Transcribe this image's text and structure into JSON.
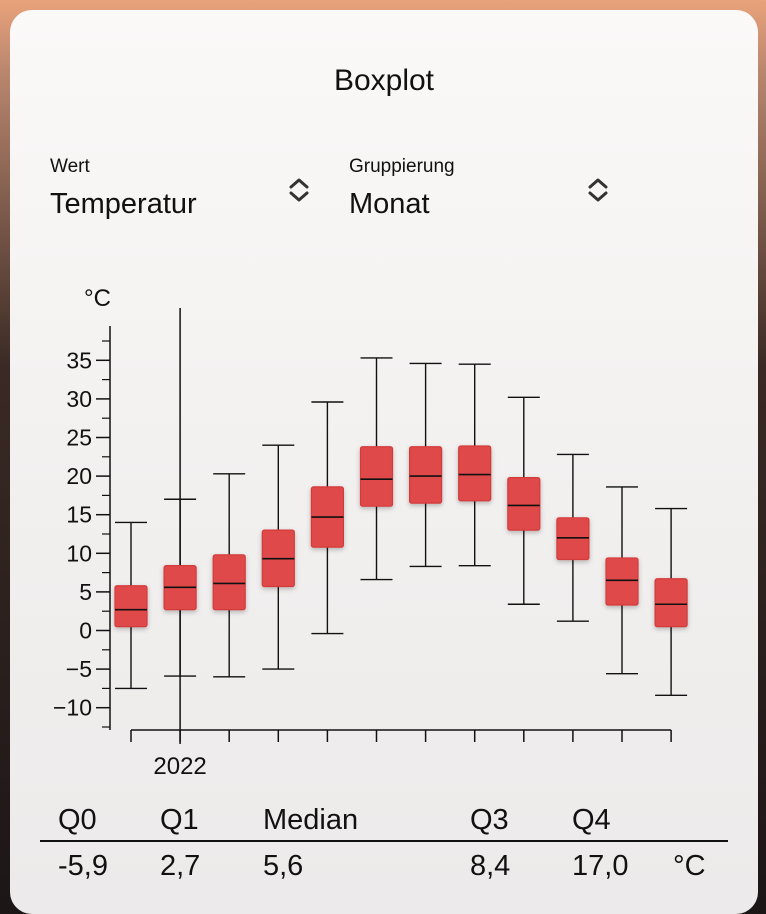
{
  "title": "Boxplot",
  "pickers": [
    {
      "label": "Wert",
      "value": "Temperatur",
      "icon": "chevron-up-down-icon"
    },
    {
      "label": "Gruppierung",
      "value": "Monat",
      "icon": "chevron-up-down-icon"
    }
  ],
  "chart_data": {
    "type": "boxplot",
    "ylabel": "°C",
    "ylim": [
      -13,
      40
    ],
    "yticks": [
      -10,
      -5,
      0,
      5,
      10,
      15,
      20,
      25,
      30,
      35
    ],
    "ytick_labels": [
      "−10",
      "−5",
      "0",
      "5",
      "10",
      "15",
      "20",
      "25",
      "30",
      "35"
    ],
    "x_label": "2022",
    "grid": false,
    "highlight_index": 1,
    "boxes": [
      {
        "min": -7.5,
        "q1": 0.5,
        "median": 2.7,
        "q3": 5.8,
        "max": 14.0
      },
      {
        "min": -5.9,
        "q1": 2.7,
        "median": 5.6,
        "q3": 8.4,
        "max": 17.0
      },
      {
        "min": -6.0,
        "q1": 2.7,
        "median": 6.1,
        "q3": 9.8,
        "max": 20.3
      },
      {
        "min": -5.0,
        "q1": 5.7,
        "median": 9.3,
        "q3": 13.0,
        "max": 24.0
      },
      {
        "min": -0.4,
        "q1": 10.8,
        "median": 14.7,
        "q3": 18.6,
        "max": 29.6
      },
      {
        "min": 6.6,
        "q1": 16.1,
        "median": 19.6,
        "q3": 23.8,
        "max": 35.3
      },
      {
        "min": 8.3,
        "q1": 16.5,
        "median": 20.0,
        "q3": 23.8,
        "max": 34.6
      },
      {
        "min": 8.4,
        "q1": 16.8,
        "median": 20.2,
        "q3": 23.9,
        "max": 34.5
      },
      {
        "min": 3.4,
        "q1": 13.0,
        "median": 16.2,
        "q3": 19.8,
        "max": 30.2
      },
      {
        "min": 1.2,
        "q1": 9.2,
        "median": 12.0,
        "q3": 14.6,
        "max": 22.8
      },
      {
        "min": -5.6,
        "q1": 3.3,
        "median": 6.5,
        "q3": 9.4,
        "max": 18.6
      },
      {
        "min": -8.4,
        "q1": 0.5,
        "median": 3.4,
        "q3": 6.7,
        "max": 15.8
      }
    ],
    "box_color": "#e04a4a",
    "box_stroke": "#d33a3a"
  },
  "stats": {
    "headers": [
      "Q0",
      "Q1",
      "Median",
      "Q3",
      "Q4"
    ],
    "values": [
      "-5,9",
      "2,7",
      "5,6",
      "8,4",
      "17,0"
    ],
    "unit": "°C"
  }
}
